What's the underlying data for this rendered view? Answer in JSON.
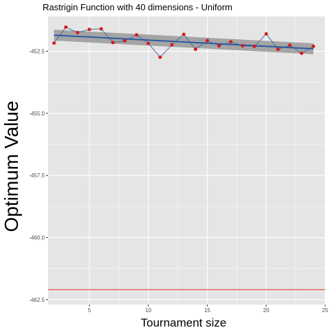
{
  "chart_data": {
    "type": "line",
    "title": "Rastrigin Function with 40 dimensions -  Uniform",
    "xlabel": "Tournament size",
    "ylabel": "Optimum Value",
    "xlim": [
      1.5,
      25
    ],
    "ylim": [
      -462.7,
      -451.1
    ],
    "x_ticks": [
      5,
      10,
      15,
      20,
      25
    ],
    "y_ticks": [
      -462.5,
      -460.0,
      -457.5,
      -455.0,
      -452.5
    ],
    "x_tick_labels": [
      "5",
      "10",
      "15",
      "20",
      "25"
    ],
    "y_tick_labels": [
      "-462.5",
      "-460.0",
      "-457.5",
      "-455.0",
      "-452.5"
    ],
    "grid": true,
    "legend": "none",
    "series": [
      {
        "x": [
          2,
          3,
          4,
          5,
          6,
          7,
          8,
          9,
          10,
          11,
          12,
          13,
          14,
          15,
          16,
          17,
          18,
          19,
          20,
          21,
          22,
          23,
          24
        ],
        "values": [
          -452.17,
          -451.53,
          -451.75,
          -451.62,
          -451.6,
          -452.15,
          -452.08,
          -451.84,
          -452.18,
          -452.74,
          -452.24,
          -451.82,
          -452.42,
          -452.07,
          -452.28,
          -452.12,
          -452.28,
          -452.3,
          -451.8,
          -452.42,
          -452.26,
          -452.58,
          -452.3
        ]
      }
    ],
    "trend": {
      "x": [
        2,
        24
      ],
      "values": [
        -451.85,
        -452.4
      ],
      "band_half_width": [
        0.22,
        0.22
      ]
    },
    "reference_line": {
      "y": -462.1
    },
    "colors": {
      "panel": "#e5e5e5",
      "grid": "#ffffff",
      "line": "#4a6fa3",
      "points": "#d7191c",
      "trend": "#2c5aa0",
      "band": "#999999",
      "reference": "#e8413a"
    }
  }
}
